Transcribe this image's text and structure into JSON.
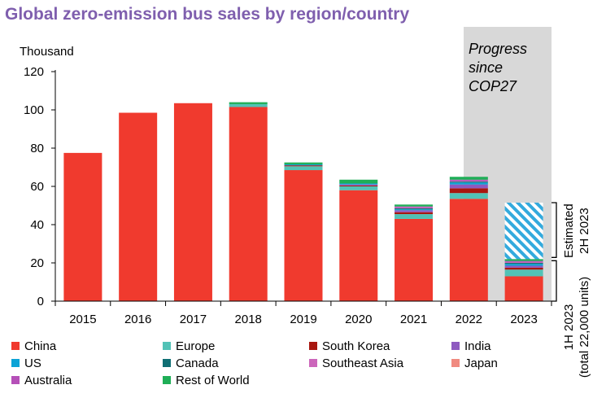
{
  "chart_data": {
    "type": "bar",
    "stacked": true,
    "title": "Global zero-emission bus sales by region/country",
    "ylabel": "Thousand",
    "xlabel": "",
    "ylim": [
      0,
      120
    ],
    "yticks": [
      0,
      20,
      40,
      60,
      80,
      100,
      120
    ],
    "grid": false,
    "legend_position": "bottom",
    "categories": [
      "2015",
      "2016",
      "2017",
      "2018",
      "2019",
      "2020",
      "2021",
      "2022",
      "2023"
    ],
    "series": [
      {
        "name": "China",
        "color": "#f03a2e",
        "values": [
          77.5,
          98.5,
          103.5,
          101.5,
          68.5,
          58,
          43,
          53.5,
          13
        ]
      },
      {
        "name": "Europe",
        "color": "#52c2b6",
        "values": [
          0,
          0,
          0,
          1.5,
          2,
          2,
          2.5,
          3,
          3.5
        ]
      },
      {
        "name": "South Korea",
        "color": "#a8170f",
        "values": [
          0,
          0,
          0,
          0,
          0.5,
          0.5,
          1,
          2.5,
          1
        ]
      },
      {
        "name": "India",
        "color": "#8e5ac0",
        "values": [
          0,
          0,
          0,
          0,
          0,
          0.5,
          1,
          2,
          1
        ]
      },
      {
        "name": "US",
        "color": "#0ca3d6",
        "values": [
          0,
          0,
          0,
          0,
          0.5,
          0.5,
          0.5,
          1,
          1
        ]
      },
      {
        "name": "Canada",
        "color": "#106f74",
        "values": [
          0,
          0,
          0,
          0,
          0,
          0,
          0.5,
          0.5,
          0.5
        ]
      },
      {
        "name": "Southeast Asia",
        "color": "#cc66bb",
        "values": [
          0,
          0,
          0,
          0,
          0,
          0,
          0.5,
          0.5,
          0.5
        ]
      },
      {
        "name": "Japan",
        "color": "#f08a80",
        "values": [
          0,
          0,
          0,
          0,
          0,
          0,
          0,
          0,
          0
        ]
      },
      {
        "name": "Australia",
        "color": "#b550b8",
        "values": [
          0,
          0,
          0,
          0,
          0,
          0,
          0.5,
          0.5,
          0.5
        ]
      },
      {
        "name": "Rest of World",
        "color": "#1fae57",
        "values": [
          0,
          0,
          0,
          1,
          1,
          2,
          1,
          1.5,
          1
        ]
      }
    ],
    "estimate": {
      "category": "2023",
      "label": "Estimated 2H 2023",
      "value": 29.5,
      "color": "#33aadd"
    },
    "annotations": {
      "progress": "Progress since COP27",
      "first_half": "1H 2023",
      "first_half_total": "(total 22,000 units)",
      "estimated_line1": "Estimated",
      "estimated_line2": "2H 2023"
    },
    "title_color": "#7f5fae",
    "shade_color": "#d8d8d8"
  }
}
